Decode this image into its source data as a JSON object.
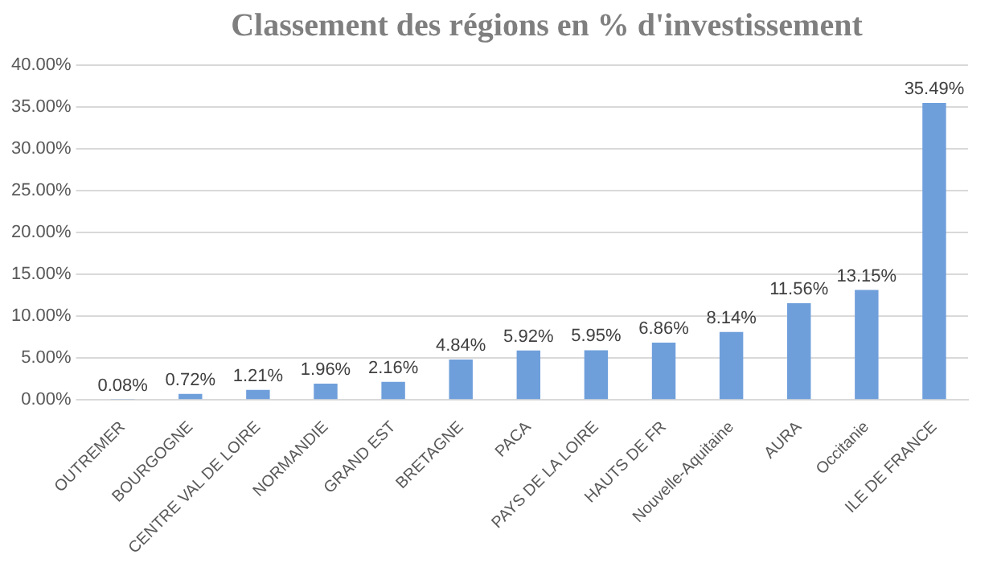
{
  "chart_data": {
    "type": "bar",
    "title": "Classement  des régions en % d'investissement",
    "categories": [
      "OUTREMER",
      "BOURGOGNE",
      "CENTRE VAL DE LOIRE",
      "NORMANDIE",
      "GRAND EST",
      "BRETAGNE",
      "PACA",
      "PAYS DE LA LOIRE",
      "HAUTS DE FR",
      "Nouvelle-Aquitaine",
      "AURA",
      "Occitanie",
      "ILE DE FRANCE"
    ],
    "values": [
      0.08,
      0.72,
      1.21,
      1.96,
      2.16,
      4.84,
      5.92,
      5.95,
      6.86,
      8.14,
      11.56,
      13.15,
      35.49
    ],
    "value_labels": [
      "0.08%",
      "0.72%",
      "1.21%",
      "1.96%",
      "2.16%",
      "4.84%",
      "5.92%",
      "5.95%",
      "6.86%",
      "8.14%",
      "11.56%",
      "13.15%",
      "35.49%"
    ],
    "color": "#6f9fdb",
    "ylim": [
      0,
      40
    ],
    "yticks": [
      {
        "value": 0,
        "label": "0.00%"
      },
      {
        "value": 5,
        "label": "5.00%"
      },
      {
        "value": 10,
        "label": "10.00%"
      },
      {
        "value": 15,
        "label": "15.00%"
      },
      {
        "value": 20,
        "label": "20.00%"
      },
      {
        "value": 25,
        "label": "25.00%"
      },
      {
        "value": 30,
        "label": "30.00%"
      },
      {
        "value": 35,
        "label": "35.00%"
      },
      {
        "value": 40,
        "label": "40.00%"
      }
    ],
    "grid": "y",
    "legend": false
  }
}
